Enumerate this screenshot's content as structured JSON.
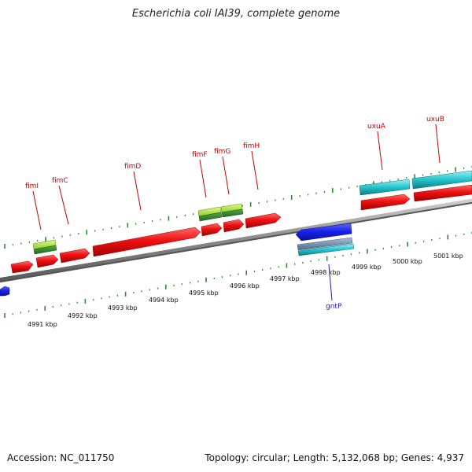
{
  "title": "Escherichia coli IAI39, complete genome",
  "footer": {
    "accession": "Accession: NC_011750",
    "stats": "Topology: circular; Length: 5,132,068 bp; Genes: 4,937"
  },
  "colors": {
    "cds_red": "#ee1111",
    "cds_blue": "#1a22ee",
    "rna_cyan": "#22c4cc",
    "gene_green": "#66bb22",
    "tick_green": "#2e8b2e",
    "backbone": "#8a8a8a",
    "label_red": "#cc0000",
    "label_blue": "#1a1acc"
  },
  "tick_labels": [
    "4991 kbp",
    "4992 kbp",
    "4993 kbp",
    "4994 kbp",
    "4995 kbp",
    "4996 kbp",
    "4997 kbp",
    "4998 kbp",
    "4999 kbp",
    "5000 kbp",
    "5001 kbp"
  ],
  "gene_labels": [
    {
      "name": "fimI",
      "strand": "plus"
    },
    {
      "name": "fimC",
      "strand": "plus"
    },
    {
      "name": "fimD",
      "strand": "plus"
    },
    {
      "name": "fimF",
      "strand": "plus"
    },
    {
      "name": "fimG",
      "strand": "plus"
    },
    {
      "name": "fimH",
      "strand": "plus"
    },
    {
      "name": "uxuA",
      "strand": "plus"
    },
    {
      "name": "uxuB",
      "strand": "plus"
    },
    {
      "name": "gntP",
      "strand": "minus"
    }
  ]
}
